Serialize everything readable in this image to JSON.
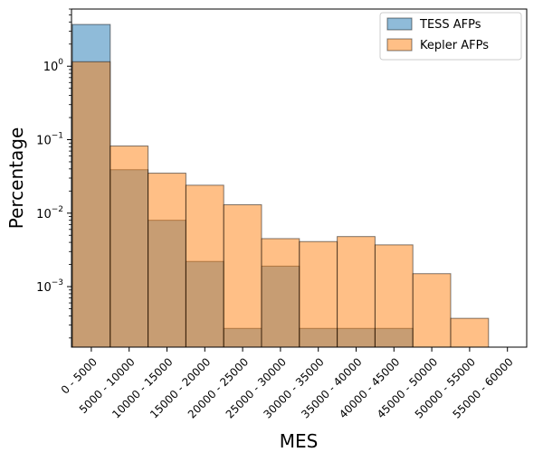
{
  "chart_data": {
    "type": "bar",
    "xlabel": "MES",
    "ylabel": "Percentage",
    "yscale": "log",
    "ylim": [
      0.00015,
      6
    ],
    "yticks": [
      {
        "value": 0.001,
        "label_base": "10",
        "label_exp": "−3"
      },
      {
        "value": 0.01,
        "label_base": "10",
        "label_exp": "−2"
      },
      {
        "value": 0.1,
        "label_base": "10",
        "label_exp": "−1"
      },
      {
        "value": 1,
        "label_base": "10",
        "label_exp": "0"
      }
    ],
    "categories": [
      "0 - 5000",
      "5000 - 10000",
      "10000 - 15000",
      "15000 - 20000",
      "20000 - 25000",
      "25000 - 30000",
      "30000 - 35000",
      "35000 - 40000",
      "40000 - 45000",
      "45000 - 50000",
      "50000 - 55000",
      "55000 - 60000"
    ],
    "series": [
      {
        "name": "TESS AFPs",
        "color": "#1f77b4",
        "alpha": 0.5,
        "values": [
          3.7,
          0.039,
          0.008,
          0.0022,
          0.00027,
          0.0019,
          0.00027,
          0.00027,
          0.00027,
          null,
          null,
          null
        ]
      },
      {
        "name": "Kepler AFPs",
        "color": "#ff7f0e",
        "alpha": 0.5,
        "values": [
          1.15,
          0.082,
          0.035,
          0.024,
          0.013,
          0.0045,
          0.0041,
          0.0048,
          0.0037,
          0.0015,
          0.00037,
          null
        ]
      }
    ],
    "legend_position": "top-right",
    "grid": false
  }
}
